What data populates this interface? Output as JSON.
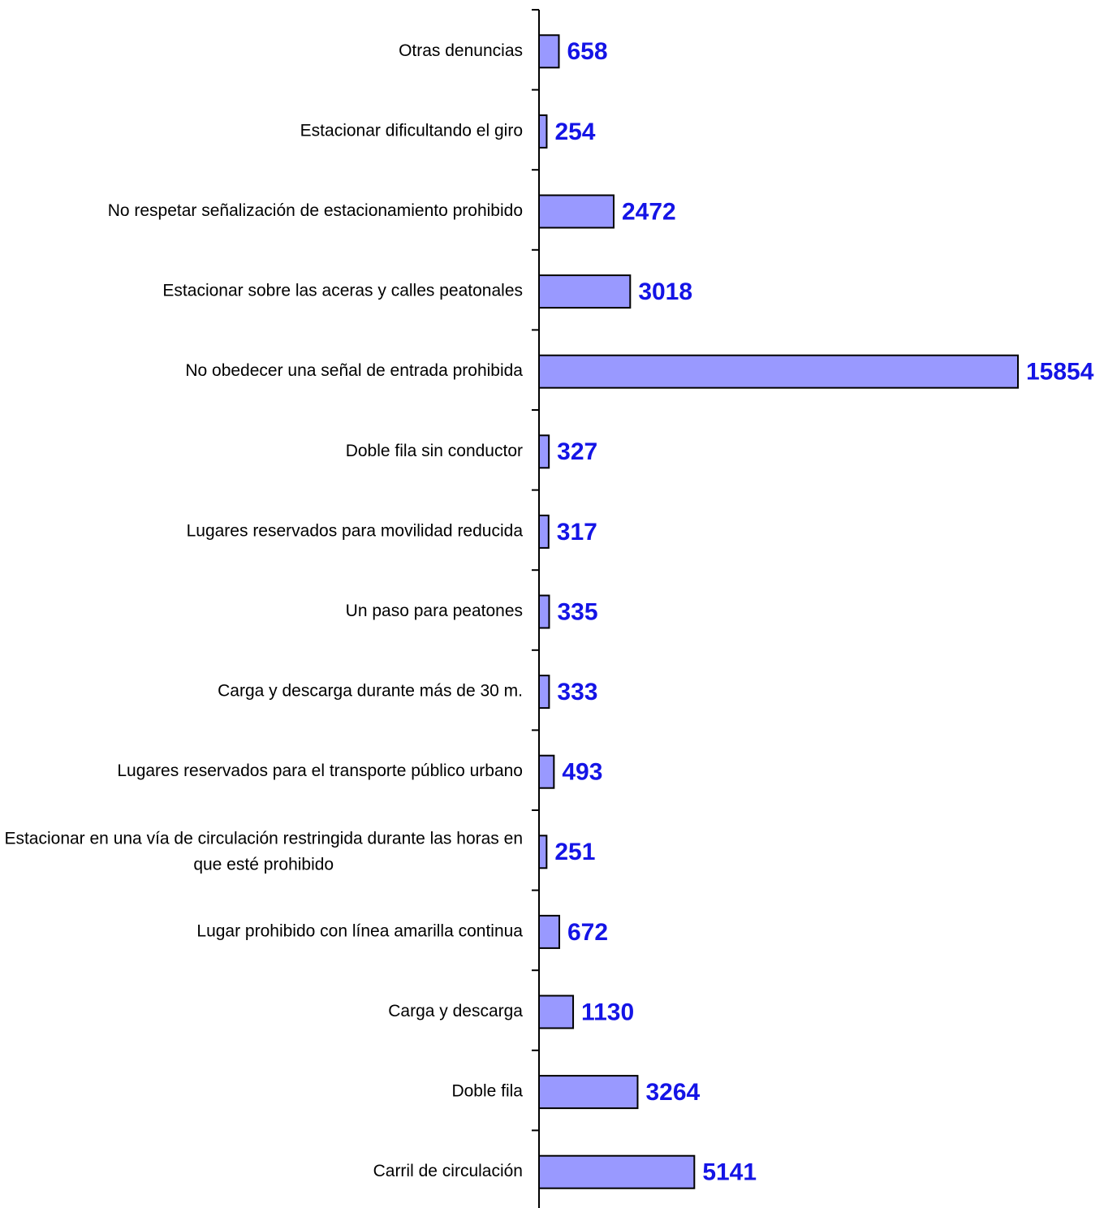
{
  "chart_data": {
    "type": "barh",
    "categories": [
      "Otras denuncias",
      "Estacionar dificultando el giro",
      "No respetar señalización de estacionamiento prohibido",
      "Estacionar sobre las aceras y calles peatonales",
      "No obedecer una señal de entrada prohibida",
      "Doble fila sin conductor",
      "Lugares reservados para movilidad reducida",
      "Un paso para peatones",
      "Carga y descarga durante más de 30 m.",
      "Lugares reservados para el transporte público urbano",
      "Estacionar en una vía de circulación restringida durante las horas en que esté prohibido",
      "Lugar prohibido con línea amarilla continua",
      "Carga y descarga",
      "Doble fila",
      "Carril de circulación"
    ],
    "values": [
      658,
      254,
      2472,
      3018,
      15854,
      327,
      317,
      335,
      333,
      493,
      251,
      672,
      1130,
      3264,
      5141
    ],
    "color": "#9999ff",
    "label_color": "#1414e6"
  }
}
